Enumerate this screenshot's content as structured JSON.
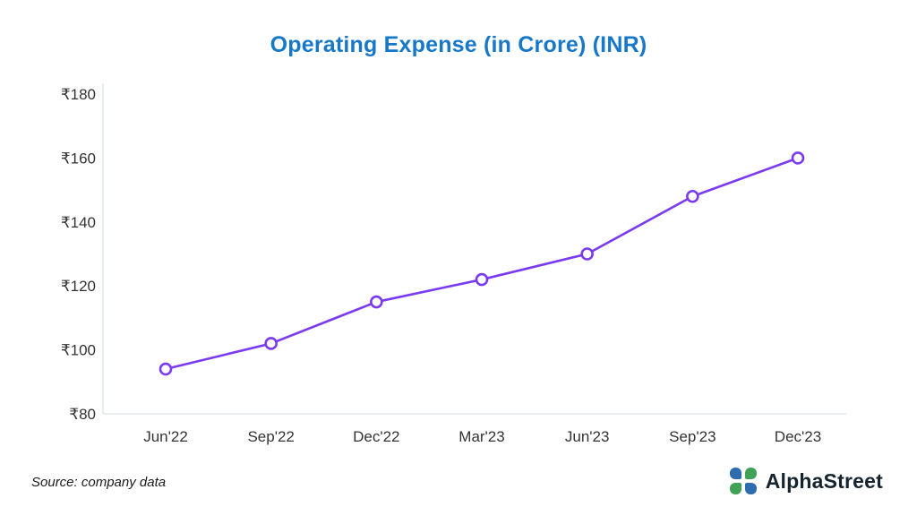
{
  "page": {
    "background": "#ffffff"
  },
  "title": "Operating Expense (in Crore) (INR)",
  "title_color": "#1778c8",
  "source_note": "Source: company data",
  "brand": {
    "name": "AlphaStreet",
    "icon_blue": "#2e6cb0",
    "icon_green": "#3fa257"
  },
  "chart_data": {
    "type": "line",
    "title": "Operating Expense (in Crore) (INR)",
    "categories": [
      "Jun'22",
      "Sep'22",
      "Dec'22",
      "Mar'23",
      "Jun'23",
      "Sep'23",
      "Dec'23"
    ],
    "values": [
      94,
      102,
      115,
      122,
      130,
      148,
      160
    ],
    "xlabel": "",
    "ylabel": "",
    "ylim": [
      80,
      180
    ],
    "ytick_step": 20,
    "ytick_prefix": "₹",
    "yticks": [
      80,
      100,
      120,
      140,
      160,
      180
    ],
    "line_color": "#7a3bf0",
    "marker": "hollow-circle",
    "axis_color": "#d6dbe0",
    "tick_label_color": "#333333",
    "grid": false,
    "legend_position": "none"
  }
}
